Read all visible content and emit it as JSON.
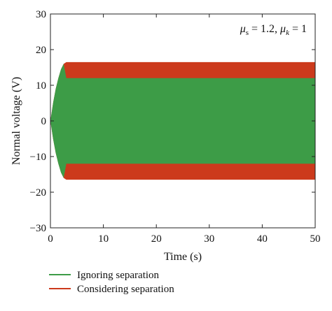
{
  "chart_data": {
    "type": "area",
    "xlabel": "Time (s)",
    "ylabel": "Normal voltage (V)",
    "xlim": [
      0,
      50
    ],
    "ylim": [
      -30,
      30
    ],
    "x_ticks": [
      0,
      10,
      20,
      30,
      40,
      50
    ],
    "y_ticks": [
      -30,
      -20,
      -10,
      0,
      10,
      20,
      30
    ],
    "x_tick_labels": [
      "0",
      "10",
      "20",
      "30",
      "40",
      "50"
    ],
    "y_tick_labels": [
      "−30",
      "−20",
      "−10",
      "0",
      "10",
      "20",
      "30"
    ],
    "grid": false,
    "legend_position": "bottom-left, below plot",
    "annotation": {
      "mu_s_symbol": "μ",
      "mu_s_sub": "s",
      "mu_s_value": " = 1.2, ",
      "mu_k_symbol": "μ",
      "mu_k_sub": "k",
      "mu_k_value": " = 1"
    },
    "series": [
      {
        "name": "Considering separation",
        "color": "#cc3a1c",
        "envelope_time": [
          0,
          0.5,
          1,
          1.5,
          2,
          2.5,
          3,
          50
        ],
        "envelope_amplitude": [
          0,
          5,
          9,
          12,
          14.5,
          16,
          16.5,
          16.5
        ]
      },
      {
        "name": "Ignoring separation",
        "color": "#3d9c47",
        "envelope_time": [
          0,
          0.5,
          1,
          1.5,
          2,
          2.5,
          3,
          50
        ],
        "envelope_amplitude": [
          0,
          5,
          9,
          12,
          14.5,
          16,
          12,
          12
        ]
      }
    ]
  }
}
